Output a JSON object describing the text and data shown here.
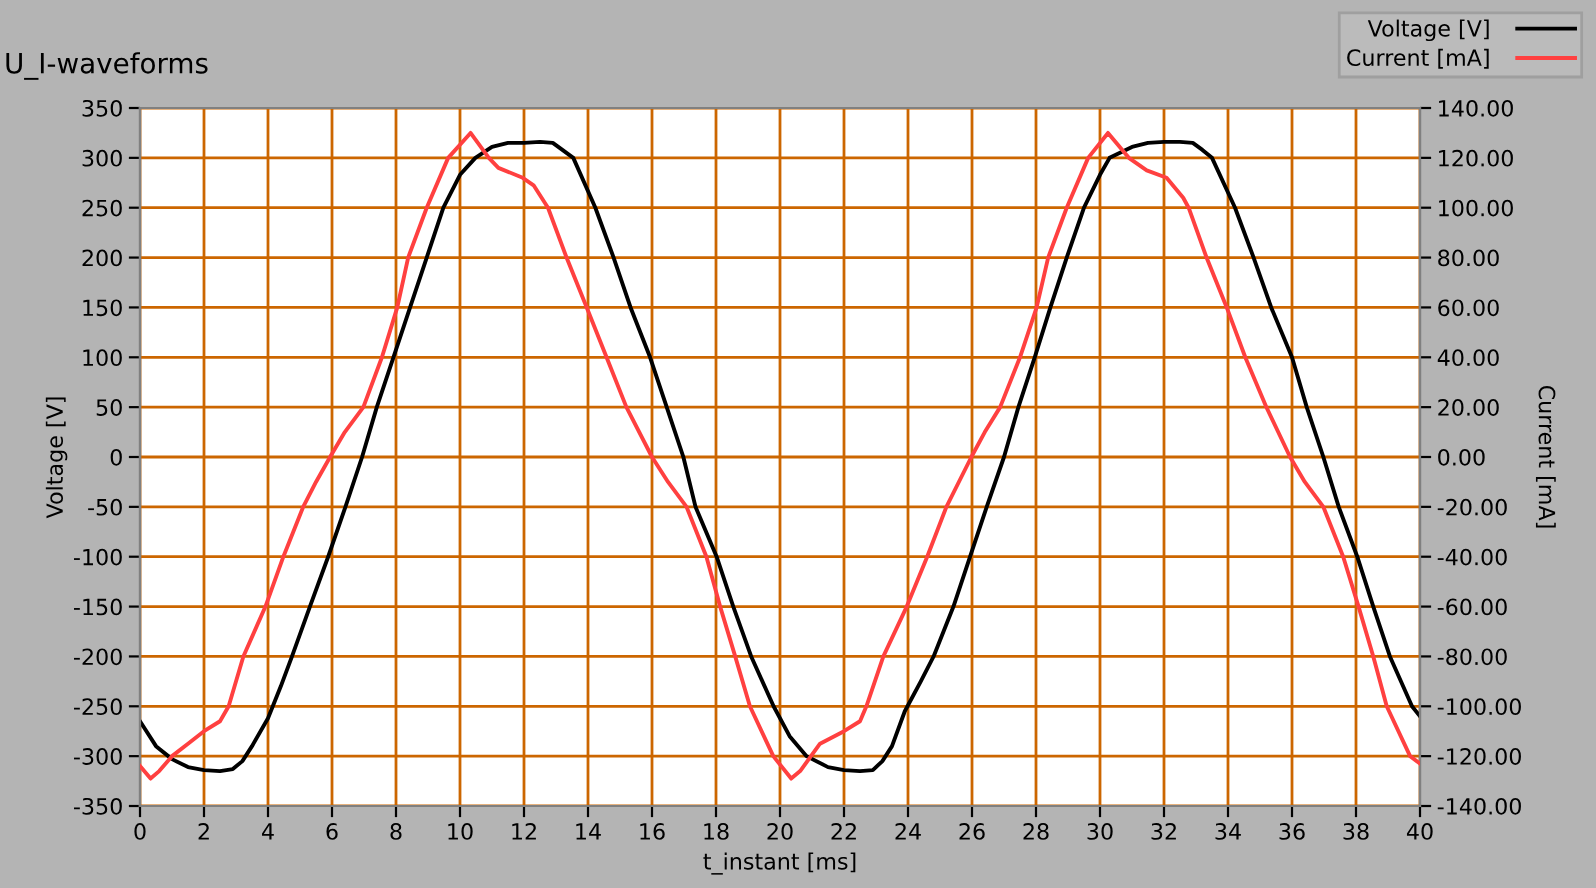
{
  "chart_data": {
    "type": "line",
    "title": "U_I-waveforms",
    "xlabel": "t_instant [ms]",
    "ylabel": "Voltage [V]",
    "y2label": "Current [mA]",
    "xlim": [
      0,
      40
    ],
    "xticks": [
      0,
      2,
      4,
      6,
      8,
      10,
      12,
      14,
      16,
      18,
      20,
      22,
      24,
      26,
      28,
      30,
      32,
      34,
      36,
      38,
      40
    ],
    "ylim": [
      -350,
      350
    ],
    "yticks": [
      -350,
      -300,
      -250,
      -200,
      -150,
      -100,
      -50,
      0,
      50,
      100,
      150,
      200,
      250,
      300,
      350
    ],
    "y2lim": [
      -140,
      140
    ],
    "y2ticks": [
      {
        "value": -140,
        "label": "-140.00"
      },
      {
        "value": -120,
        "label": "-120.00"
      },
      {
        "value": -100,
        "label": "-100.00"
      },
      {
        "value": -80,
        "label": "-80.00"
      },
      {
        "value": -60,
        "label": "-60.00"
      },
      {
        "value": -40,
        "label": "-40.00"
      },
      {
        "value": -20,
        "label": "-20.00"
      },
      {
        "value": 0,
        "label": "0.00"
      },
      {
        "value": 20,
        "label": "20.00"
      },
      {
        "value": 40,
        "label": "40.00"
      },
      {
        "value": 60,
        "label": "60.00"
      },
      {
        "value": 80,
        "label": "80.00"
      },
      {
        "value": 100,
        "label": "100.00"
      },
      {
        "value": 120,
        "label": "120.00"
      },
      {
        "value": 140,
        "label": "140.00"
      }
    ],
    "grid": true,
    "legend": "top right",
    "series": [
      {
        "name": "Voltage [V]",
        "color": "#000000",
        "x": [
          0,
          0.5,
          1.0,
          1.5,
          2.0,
          2.5,
          2.9,
          3.2,
          3.5,
          4.0,
          4.4,
          4.75,
          5.31,
          5.88,
          6.42,
          6.94,
          7.4,
          7.92,
          8.44,
          8.96,
          9.48,
          10.0,
          10.48,
          11.0,
          11.5,
          12.0,
          12.5,
          12.9,
          13.2,
          13.54,
          14.23,
          14.8,
          15.33,
          15.94,
          16.46,
          16.98,
          17.36,
          18.02,
          18.54,
          19.1,
          19.8,
          20.3,
          20.83,
          21.5,
          22.0,
          22.5,
          22.9,
          23.2,
          23.5,
          23.9,
          24.4,
          24.8,
          25.42,
          25.94,
          26.46,
          27.0,
          27.45,
          27.96,
          28.45,
          28.96,
          29.5,
          30.0,
          30.3,
          31.0,
          31.5,
          32.0,
          32.5,
          32.9,
          33.2,
          33.5,
          34.22,
          34.8,
          35.35,
          36.0,
          36.46,
          36.98,
          37.46,
          38.04,
          38.54,
          39.06,
          39.75,
          40.0
        ],
        "values": [
          -265,
          -290,
          -303,
          -311,
          -314,
          -315,
          -313,
          -305,
          -290,
          -262,
          -230,
          -200,
          -150,
          -100,
          -50,
          0,
          50,
          100,
          150,
          200,
          250,
          283,
          300,
          311,
          315,
          315,
          316,
          315,
          308,
          300,
          250,
          200,
          150,
          100,
          50,
          0,
          -50,
          -100,
          -150,
          -200,
          -250,
          -280,
          -300,
          -311,
          -314,
          -315,
          -314,
          -305,
          -290,
          -255,
          -225,
          -200,
          -150,
          -100,
          -50,
          0,
          50,
          100,
          150,
          200,
          250,
          283,
          300,
          311,
          315,
          316,
          316,
          315,
          308,
          300,
          250,
          200,
          150,
          100,
          50,
          0,
          -50,
          -100,
          -150,
          -200,
          -250,
          -260
        ]
      },
      {
        "name": "Current [mA]",
        "color": "#ff4040",
        "axis": "y2",
        "x": [
          0,
          0.33,
          0.6,
          1.0,
          1.5,
          2.0,
          2.5,
          2.77,
          3.23,
          3.92,
          4.48,
          5.1,
          5.5,
          5.94,
          6.4,
          6.98,
          7.56,
          8.04,
          8.38,
          8.96,
          9.63,
          10.33,
          10.9,
          11.2,
          11.96,
          12.3,
          12.75,
          13.33,
          13.96,
          14.58,
          15.2,
          16.0,
          16.5,
          17.08,
          17.7,
          18.13,
          18.6,
          19.06,
          19.79,
          20.35,
          20.63,
          21.25,
          22.0,
          22.5,
          22.7,
          23.23,
          23.96,
          24.6,
          25.2,
          25.98,
          26.4,
          26.88,
          27.5,
          28.02,
          28.38,
          28.96,
          29.63,
          30.25,
          30.9,
          31.46,
          32.08,
          32.6,
          32.77,
          33.33,
          33.96,
          34.54,
          35.2,
          35.94,
          36.4,
          36.98,
          37.6,
          38.08,
          38.54,
          38.96,
          39.69,
          40.0
        ],
        "values": [
          -124,
          -129,
          -126,
          -120,
          -115,
          -110,
          -106,
          -100,
          -80,
          -60,
          -40,
          -20,
          -10,
          0,
          10,
          20,
          40,
          60,
          80,
          100,
          120,
          130,
          120,
          116,
          112,
          109,
          100,
          80,
          60,
          40,
          20,
          0,
          -10,
          -20,
          -40,
          -60,
          -80,
          -100,
          -120,
          -129,
          -126,
          -115,
          -110,
          -106,
          -100,
          -80,
          -60,
          -40,
          -20,
          0,
          10,
          20,
          40,
          60,
          80,
          100,
          120,
          130,
          120,
          115,
          112,
          104,
          100,
          80,
          60,
          40,
          20,
          0,
          -10,
          -20,
          -40,
          -60,
          -80,
          -100,
          -120,
          -123
        ]
      }
    ]
  }
}
